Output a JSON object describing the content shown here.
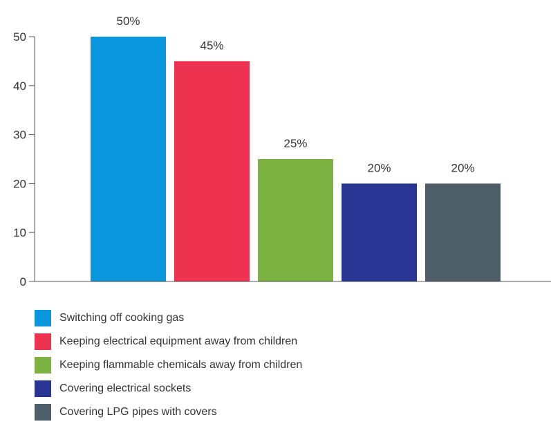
{
  "chart_data": {
    "type": "bar",
    "categories": [
      "Switching off cooking gas",
      "Keeping electrical equipment away from children",
      "Keeping flammable chemicals away from children",
      "Covering electrical sockets",
      "Covering LPG pipes with covers"
    ],
    "values": [
      50,
      45,
      25,
      20,
      20
    ],
    "data_labels": [
      "50%",
      "45%",
      "25%",
      "20%",
      "20%"
    ],
    "colors": [
      "#0a96dc",
      "#ee3350",
      "#7cb241",
      "#283593",
      "#4d5e68"
    ],
    "yticks": [
      0,
      10,
      20,
      30,
      40,
      50
    ],
    "ylim": [
      0,
      50
    ],
    "grid": false,
    "legend_position": "bottom-left",
    "title": "",
    "xlabel": "",
    "ylabel": ""
  }
}
